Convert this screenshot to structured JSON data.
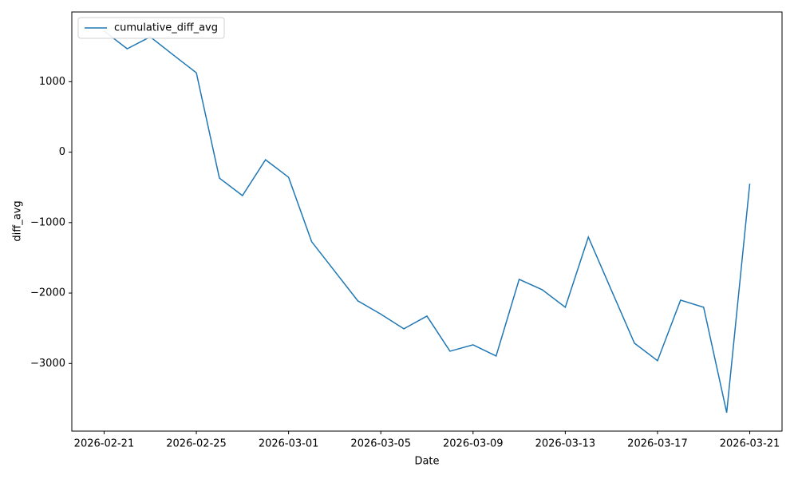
{
  "chart_data": {
    "type": "line",
    "xlabel": "Date",
    "ylabel": "diff_avg",
    "x": [
      "2026-02-21",
      "2026-02-22",
      "2026-02-23",
      "2026-02-24",
      "2026-02-25",
      "2026-02-26",
      "2026-02-27",
      "2026-02-28",
      "2026-03-01",
      "2026-03-02",
      "2026-03-03",
      "2026-03-04",
      "2026-03-05",
      "2026-03-06",
      "2026-03-07",
      "2026-03-08",
      "2026-03-09",
      "2026-03-10",
      "2026-03-11",
      "2026-03-12",
      "2026-03-13",
      "2026-03-14",
      "2026-03-15",
      "2026-03-16",
      "2026-03-17",
      "2026-03-18",
      "2026-03-19",
      "2026-03-20",
      "2026-03-21"
    ],
    "series": [
      {
        "name": "cumulative_diff_avg",
        "color": "#1f77b4",
        "values": [
          1720,
          1467,
          1637,
          1380,
          1127,
          -368,
          -617,
          -108,
          -357,
          -1270,
          -1690,
          -2110,
          -2300,
          -2508,
          -2327,
          -2826,
          -2735,
          -2894,
          -1806,
          -1953,
          -2202,
          -1206,
          -1960,
          -2712,
          -2961,
          -2101,
          -2202,
          -3697,
          -447
        ]
      }
    ],
    "xticks": [
      "2026-02-21",
      "2026-02-25",
      "2026-03-01",
      "2026-03-05",
      "2026-03-09",
      "2026-03-13",
      "2026-03-17",
      "2026-03-21"
    ],
    "ylim": [
      -3960,
      1990
    ],
    "yticks": [
      {
        "value": -3000,
        "label": "−3000"
      },
      {
        "value": -2000,
        "label": "−2000"
      },
      {
        "value": -1000,
        "label": "−1000"
      },
      0,
      1000
    ],
    "legend": "upper left"
  }
}
